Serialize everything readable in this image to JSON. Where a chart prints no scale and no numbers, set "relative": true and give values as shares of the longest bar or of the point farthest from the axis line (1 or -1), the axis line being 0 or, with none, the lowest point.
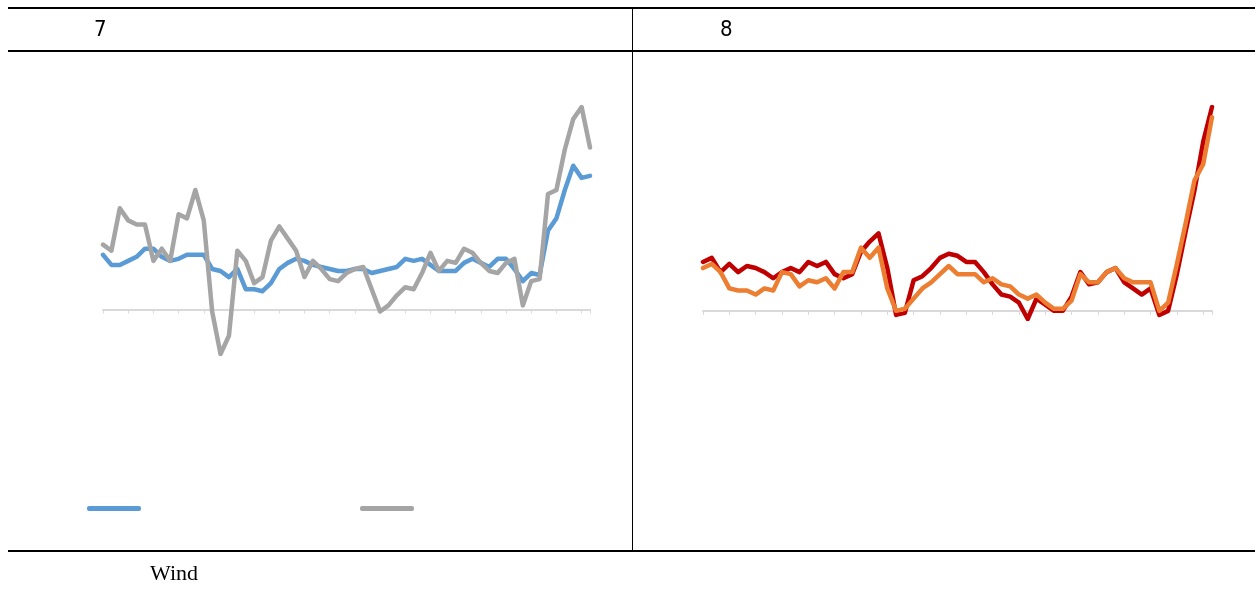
{
  "chart_data": [
    {
      "type": "line",
      "title": "7",
      "relative": true,
      "marker": "none",
      "line_style": "solid",
      "annotations": [
        "Wind"
      ],
      "categories": [
        null,
        null,
        null,
        null,
        null,
        null,
        null,
        null,
        null,
        null,
        null,
        null,
        null,
        null,
        null,
        null,
        null,
        null,
        null,
        null,
        null,
        null,
        null,
        null,
        null,
        null,
        null,
        null,
        null,
        null,
        null,
        null,
        null,
        null,
        null,
        null,
        null,
        null,
        null,
        null,
        null,
        null,
        null,
        null,
        null,
        null,
        null,
        null,
        null,
        null,
        null,
        null,
        null,
        null,
        null,
        null,
        null,
        null,
        null
      ],
      "series": [
        {
          "color": "#5b9bd5",
          "values": [
            0.27,
            0.22,
            0.22,
            0.24,
            0.26,
            0.3,
            0.3,
            0.26,
            0.24,
            0.25,
            0.27,
            0.27,
            0.27,
            0.2,
            0.19,
            0.16,
            0.2,
            0.1,
            0.1,
            0.09,
            0.13,
            0.2,
            0.23,
            0.25,
            0.24,
            0.22,
            0.21,
            0.2,
            0.19,
            0.19,
            0.2,
            0.2,
            0.18,
            0.19,
            0.2,
            0.21,
            0.25,
            0.24,
            0.25,
            0.22,
            0.19,
            0.19,
            0.19,
            0.23,
            0.25,
            0.23,
            0.21,
            0.25,
            0.25,
            0.2,
            0.14,
            0.18,
            0.17,
            0.39,
            0.45,
            0.59,
            0.71,
            0.65,
            0.66
          ]
        },
        {
          "color": "#a5a5a5",
          "values": [
            0.32,
            0.29,
            0.5,
            0.44,
            0.42,
            0.42,
            0.24,
            0.3,
            0.24,
            0.47,
            0.45,
            0.59,
            0.44,
            -0.01,
            -0.22,
            -0.13,
            0.29,
            0.24,
            0.13,
            0.16,
            0.34,
            0.41,
            0.35,
            0.29,
            0.16,
            0.24,
            0.2,
            0.15,
            0.14,
            0.18,
            0.2,
            0.21,
            0.1,
            -0.01,
            0.02,
            0.07,
            0.11,
            0.1,
            0.18,
            0.28,
            0.19,
            0.24,
            0.23,
            0.3,
            0.28,
            0.23,
            0.19,
            0.18,
            0.23,
            0.25,
            0.02,
            0.14,
            0.15,
            0.57,
            0.59,
            0.79,
            0.94,
            1.0,
            0.8
          ]
        }
      ]
    },
    {
      "type": "line",
      "title": "8",
      "relative": true,
      "marker": "none",
      "line_style": "solid",
      "categories": [
        null,
        null,
        null,
        null,
        null,
        null,
        null,
        null,
        null,
        null,
        null,
        null,
        null,
        null,
        null,
        null,
        null,
        null,
        null,
        null,
        null,
        null,
        null,
        null,
        null,
        null,
        null,
        null,
        null,
        null,
        null,
        null,
        null,
        null,
        null,
        null,
        null,
        null,
        null,
        null,
        null,
        null,
        null,
        null,
        null,
        null,
        null,
        null,
        null,
        null,
        null,
        null,
        null,
        null,
        null,
        null,
        null,
        null,
        null
      ],
      "series": [
        {
          "color": "#c00000",
          "values": [
            0.24,
            0.26,
            0.19,
            0.23,
            0.19,
            0.22,
            0.21,
            0.19,
            0.16,
            0.19,
            0.21,
            0.19,
            0.24,
            0.22,
            0.24,
            0.18,
            0.16,
            0.18,
            0.29,
            0.34,
            0.38,
            0.21,
            -0.02,
            -0.01,
            0.15,
            0.17,
            0.21,
            0.26,
            0.28,
            0.27,
            0.24,
            0.24,
            0.19,
            0.13,
            0.08,
            0.07,
            0.04,
            -0.04,
            0.06,
            0.03,
            0,
            0,
            0.07,
            0.19,
            0.13,
            0.14,
            0.19,
            0.21,
            0.14,
            0.11,
            0.08,
            0.11,
            -0.02,
            0,
            0.18,
            0.39,
            0.59,
            0.83,
            1.0
          ]
        },
        {
          "color": "#ed7d31",
          "values": [
            0.21,
            0.23,
            0.19,
            0.11,
            0.1,
            0.1,
            0.08,
            0.11,
            0.1,
            0.19,
            0.18,
            0.12,
            0.15,
            0.14,
            0.16,
            0.11,
            0.19,
            0.19,
            0.31,
            0.26,
            0.31,
            0.11,
            0,
            0.01,
            0.06,
            0.11,
            0.14,
            0.18,
            0.22,
            0.18,
            0.18,
            0.18,
            0.14,
            0.16,
            0.13,
            0.12,
            0.08,
            0.06,
            0.08,
            0.04,
            0.01,
            0.01,
            0.05,
            0.18,
            0.14,
            0.14,
            0.19,
            0.21,
            0.16,
            0.14,
            0.14,
            0.14,
            0,
            0.04,
            0.23,
            0.43,
            0.64,
            0.72,
            0.95
          ]
        }
      ]
    }
  ]
}
